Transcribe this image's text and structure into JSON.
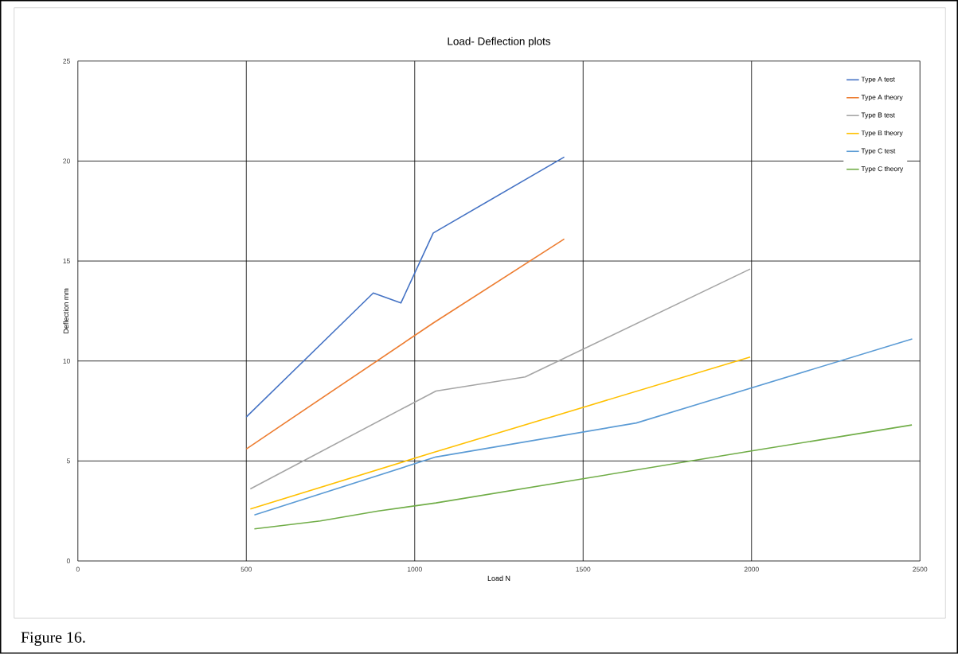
{
  "chart_data": {
    "type": "line",
    "title": "Load- Deflection plots",
    "xlabel": "Load N",
    "ylabel": "Deflection mm",
    "xlim": [
      0,
      2500
    ],
    "xticks": [
      0,
      500,
      1000,
      1500,
      2000,
      2500
    ],
    "ylim": [
      0,
      25
    ],
    "yticks": [
      0,
      5,
      10,
      15,
      20,
      25
    ],
    "grid": true,
    "legend": "top right",
    "annotations": [
      "Figure 16."
    ],
    "series": [
      {
        "name": "Type A test",
        "color": "#4472c4",
        "x": [
          500,
          877,
          959,
          1055,
          1444
        ],
        "values": [
          7.2,
          13.4,
          12.9,
          16.4,
          20.2
        ]
      },
      {
        "name": "Type A theory",
        "color": "#ed7d31",
        "x": [
          500,
          1055,
          1444
        ],
        "values": [
          5.6,
          11.9,
          16.1
        ]
      },
      {
        "name": "Type B test",
        "color": "#a5a5a5",
        "x": [
          512,
          1063,
          1328,
          1996
        ],
        "values": [
          3.6,
          8.5,
          9.2,
          14.6
        ]
      },
      {
        "name": "Type B theory",
        "color": "#ffc000",
        "x": [
          512,
          1051,
          1996
        ],
        "values": [
          2.6,
          5.4,
          10.2
        ]
      },
      {
        "name": "Type C test",
        "color": "#5b9bd5",
        "x": [
          524,
          1063,
          1658,
          2477
        ],
        "values": [
          2.3,
          5.2,
          6.9,
          11.1
        ]
      },
      {
        "name": "Type C theory",
        "color": "#70ad47",
        "x": [
          524,
          720,
          892,
          1063,
          2000,
          2476
        ],
        "values": [
          1.6,
          2.0,
          2.5,
          2.9,
          5.5,
          6.8
        ]
      }
    ]
  }
}
